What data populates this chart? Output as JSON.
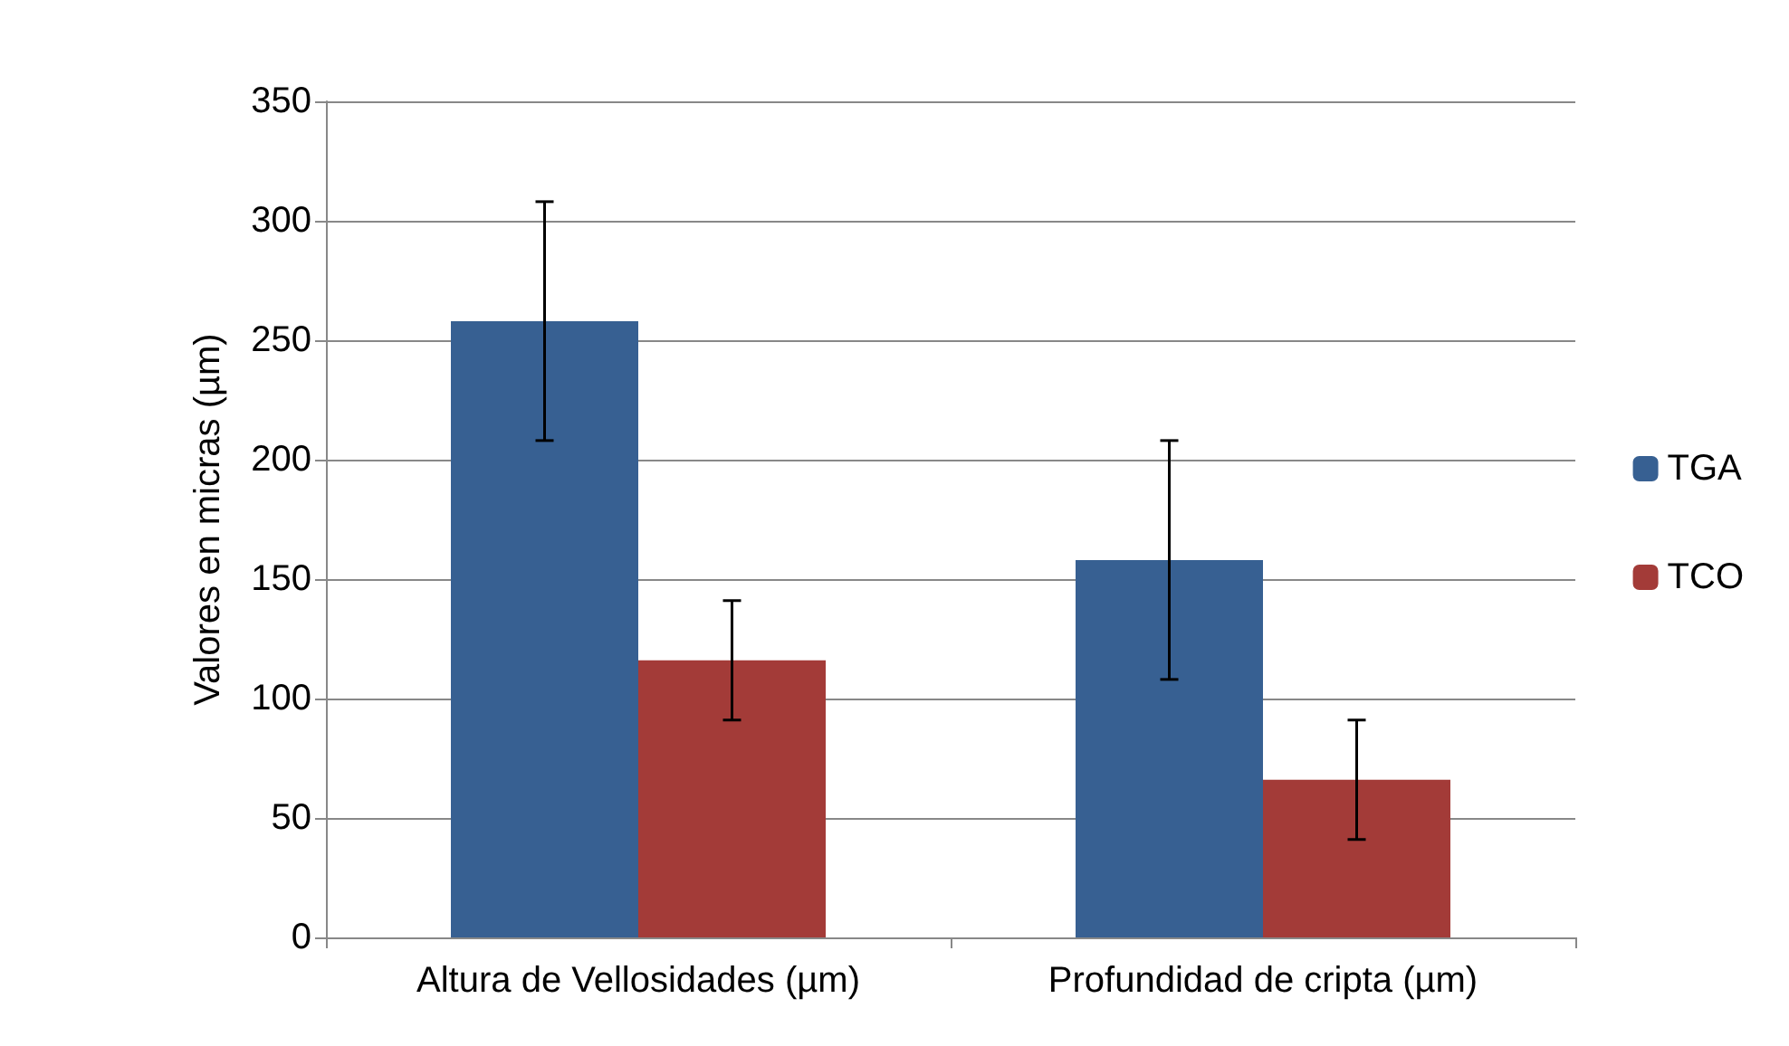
{
  "chart_data": {
    "type": "bar",
    "ylabel": "Valores en micras (µm)",
    "categories": [
      "Altura de Vellosidades (µm)",
      "Profundidad de cripta (µm)"
    ],
    "series": [
      {
        "name": "TGA",
        "color": "#376092",
        "values": [
          258,
          158
        ],
        "errors": [
          50,
          50
        ]
      },
      {
        "name": "TCO",
        "color": "#a33b38",
        "values": [
          116,
          66
        ],
        "errors": [
          25,
          25
        ]
      }
    ],
    "ylim": [
      0,
      350
    ],
    "yticks": [
      0,
      50,
      100,
      150,
      200,
      250,
      300,
      350
    ],
    "grid": "y",
    "legend": "right"
  }
}
